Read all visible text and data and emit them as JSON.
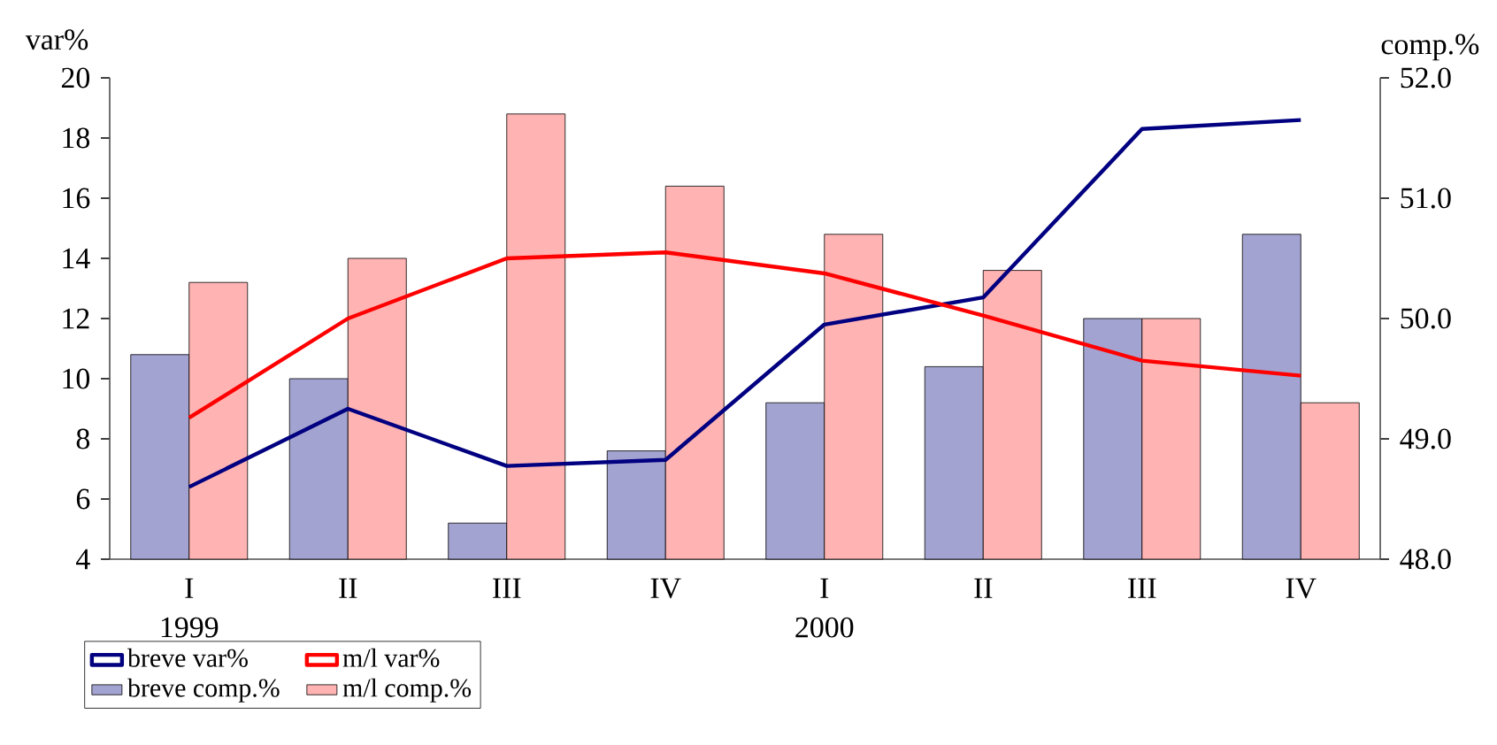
{
  "chart_data": {
    "type": "bar",
    "categories": [
      "I",
      "II",
      "III",
      "IV",
      "I",
      "II",
      "III",
      "IV"
    ],
    "annotations": [
      "1999",
      "2000"
    ],
    "ylabel": "var%",
    "y2label": "comp.%",
    "ylim": [
      4,
      20
    ],
    "yticks": [
      4,
      6,
      8,
      10,
      12,
      14,
      16,
      18,
      20
    ],
    "y2lim": [
      48,
      52
    ],
    "y2ticks": [
      {
        "value": 48,
        "label": "48.0"
      },
      {
        "value": 49,
        "label": "49.0"
      },
      {
        "value": 50,
        "label": "50.0"
      },
      {
        "value": 51,
        "label": "51.0"
      },
      {
        "value": 52,
        "label": "52.0"
      }
    ],
    "legend": "bottom left",
    "grid": false,
    "series": [
      {
        "name": "breve var%",
        "type": "line",
        "color": "#000080",
        "values": [
          6.4,
          9.0,
          7.1,
          7.3,
          11.8,
          12.7,
          18.3,
          18.6
        ]
      },
      {
        "name": "m/l var%",
        "type": "line",
        "color": "#ff0000",
        "values": [
          8.7,
          12.0,
          14.0,
          14.2,
          13.5,
          12.1,
          10.6,
          10.1
        ]
      },
      {
        "name": "breve comp.%",
        "axis": "y2",
        "color": "#a3a3d1",
        "values": [
          49.7,
          49.5,
          48.3,
          48.9,
          49.3,
          49.6,
          50.0,
          50.7
        ]
      },
      {
        "name": "m/l comp.%",
        "axis": "y2",
        "color": "#ffb3b3",
        "values": [
          50.3,
          50.5,
          51.7,
          51.1,
          50.7,
          50.4,
          50.0,
          49.3
        ]
      }
    ]
  }
}
